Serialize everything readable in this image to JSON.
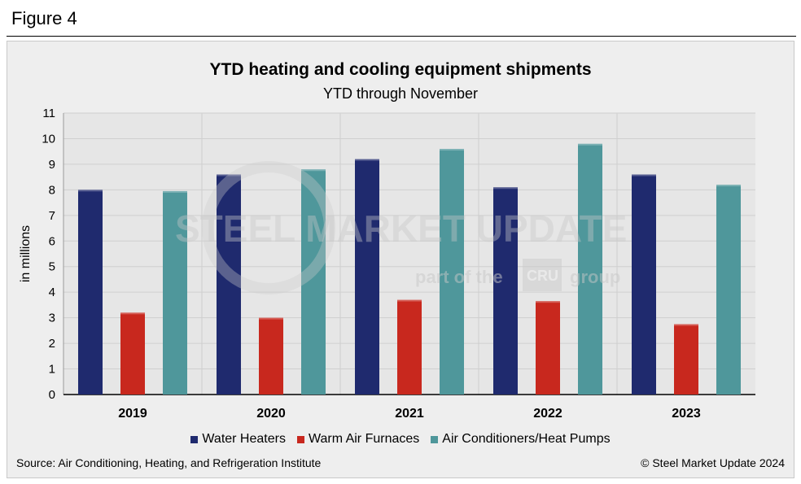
{
  "figure_label": "Figure 4",
  "source_text": "Source: Air Conditioning, Heating, and Refrigeration Institute",
  "copyright_text": "© Steel Market Update 2024",
  "watermark": {
    "brand": "STEEL MARKET UPDATE",
    "tagline_pre": "part of the",
    "logo_text": "CRU",
    "tagline_post": "group"
  },
  "colors": {
    "water_heaters": "#1f2a6e",
    "warm_air_furnaces": "#c8281e",
    "ac_heat_pumps": "#4f979b",
    "plot_bg": "#e6e6e6",
    "grid": "#cfcfcf"
  },
  "chart_data": {
    "type": "bar",
    "title": "YTD heating and cooling equipment shipments",
    "subtitle": "YTD through November",
    "xlabel": "",
    "ylabel": "in millions",
    "ylim": [
      0,
      11
    ],
    "yticks": [
      0,
      1,
      2,
      3,
      4,
      5,
      6,
      7,
      8,
      9,
      10,
      11
    ],
    "grid": true,
    "legend_position": "bottom",
    "categories": [
      "2019",
      "2020",
      "2021",
      "2022",
      "2023"
    ],
    "series": [
      {
        "name": "Water Heaters",
        "color": "#1f2a6e",
        "values": [
          8.0,
          8.6,
          9.2,
          8.1,
          8.6
        ]
      },
      {
        "name": "Warm Air Furnaces",
        "color": "#c8281e",
        "values": [
          3.2,
          3.0,
          3.7,
          3.65,
          2.75
        ]
      },
      {
        "name": "Air Conditioners/Heat Pumps",
        "color": "#4f979b",
        "values": [
          7.95,
          8.8,
          9.6,
          9.8,
          8.2
        ]
      }
    ]
  }
}
